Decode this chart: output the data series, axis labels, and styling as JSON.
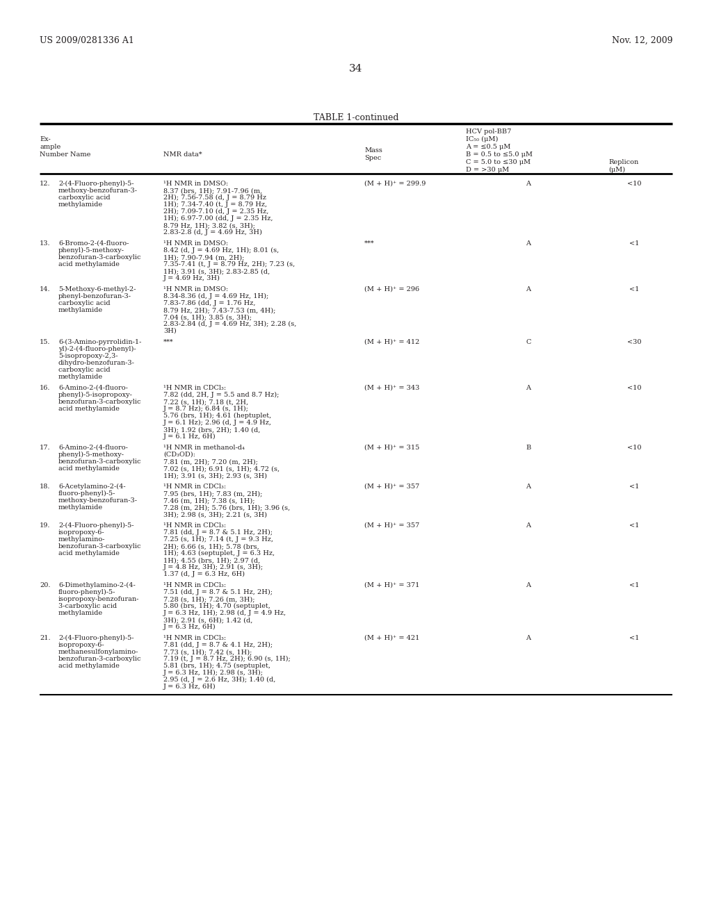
{
  "header_left": "US 2009/0281336 A1",
  "header_right": "Nov. 12, 2009",
  "page_number": "34",
  "table_title": "TABLE 1-continued",
  "bg_color": "#ffffff",
  "text_color": "#231f20",
  "font_size": 7.0,
  "rows": [
    {
      "num": "12.",
      "name": "2-(4-Fluoro-phenyl)-5-\nmethoxy-benzofuran-3-\ncarboxylic acid\nmethylamide",
      "nmr": "¹H NMR in DMSO:\n8.37 (brs, 1H); 7.91-7.96 (m,\n2H); 7.56-7.58 (d, J = 8.79 Hz\n1H); 7.34-7.40 (t, J = 8.79 Hz,\n2H); 7.09-7.10 (d, J = 2.35 Hz,\n1H); 6.97-7.00 (dd, J = 2.35 Hz,\n8.79 Hz, 1H); 3.82 (s, 3H);\n2.83-2.8 (d, J = 4.69 Hz, 3H)",
      "mass": "(M + H)⁺ = 299.9",
      "hcv": "A",
      "replicon": "<10"
    },
    {
      "num": "13.",
      "name": "6-Bromo-2-(4-fluoro-\nphenyl)-5-methoxy-\nbenzofuran-3-carboxylic\nacid methylamide",
      "nmr": "¹H NMR in DMSO:\n8.42 (d, J = 4.69 Hz, 1H); 8.01 (s,\n1H); 7.90-7.94 (m, 2H);\n7.35-7.41 (t, J = 8.79 Hz, 2H); 7.23 (s,\n1H); 3.91 (s, 3H); 2.83-2.85 (d,\nJ = 4.69 Hz, 3H)",
      "mass": "***",
      "hcv": "A",
      "replicon": "<1"
    },
    {
      "num": "14.",
      "name": "5-Methoxy-6-methyl-2-\nphenyl-benzofuran-3-\ncarboxylic acid\nmethylamide",
      "nmr": "¹H NMR in DMSO:\n8.34-8.36 (d, J = 4.69 Hz, 1H);\n7.83-7.86 (dd, J = 1.76 Hz,\n8.79 Hz, 2H); 7.43-7.53 (m, 4H);\n7.04 (s, 1H); 3.85 (s, 3H);\n2.83-2.84 (d, J = 4.69 Hz, 3H); 2.28 (s,\n3H)",
      "mass": "(M + H)⁺ = 296",
      "hcv": "A",
      "replicon": "<1"
    },
    {
      "num": "15.",
      "name": "6-(3-Amino-pyrrolidin-1-\nyl)-2-(4-fluoro-phenyl)-\n5-isopropoxy-2,3-\ndihydro-benzofuran-3-\ncarboxylic acid\nmethylamide",
      "nmr": "***",
      "mass": "(M + H)⁺ = 412",
      "hcv": "C",
      "replicon": "<30"
    },
    {
      "num": "16.",
      "name": "6-Amino-2-(4-fluoro-\nphenyl)-5-isopropoxy-\nbenzofuran-3-carboxylic\nacid methylamide",
      "nmr": "¹H NMR in CDCl₃:\n7.82 (dd, 2H, J = 5.5 and 8.7 Hz);\n7.22 (s, 1H); 7.18 (t, 2H,\nJ = 8.7 Hz); 6.84 (s, 1H);\n5.76 (brs, 1H); 4.61 (heptuplet,\nJ = 6.1 Hz); 2.96 (d, J = 4.9 Hz,\n3H); 1.92 (brs, 2H); 1.40 (d,\nJ = 6.1 Hz, 6H)",
      "mass": "(M + H)⁺ = 343",
      "hcv": "A",
      "replicon": "<10"
    },
    {
      "num": "17.",
      "name": "6-Amino-2-(4-fluoro-\nphenyl)-5-methoxy-\nbenzofuran-3-carboxylic\nacid methylamide",
      "nmr": "¹H NMR in methanol-d₄\n(CD₃OD):\n7.81 (m, 2H); 7.20 (m, 2H);\n7.02 (s, 1H); 6.91 (s, 1H); 4.72 (s,\n1H); 3.91 (s, 3H); 2.93 (s, 3H)",
      "mass": "(M + H)⁺ = 315",
      "hcv": "B",
      "replicon": "<10"
    },
    {
      "num": "18.",
      "name": "6-Acetylamino-2-(4-\nfluoro-phenyl)-5-\nmethoxy-benzofuran-3-\nmethylamide",
      "nmr": "¹H NMR in CDCl₃:\n7.95 (brs, 1H); 7.83 (m, 2H);\n7.46 (m, 1H); 7.38 (s, 1H);\n7.28 (m, 2H); 5.76 (brs, 1H); 3.96 (s,\n3H); 2.98 (s, 3H); 2.21 (s, 3H)",
      "mass": "(M + H)⁺ = 357",
      "hcv": "A",
      "replicon": "<1"
    },
    {
      "num": "19.",
      "name": "2-(4-Fluoro-phenyl)-5-\nisopropoxy-6-\nmethylamino-\nbenzofuran-3-carboxylic\nacid methylamide",
      "nmr": "¹H NMR in CDCl₃:\n7.81 (dd, J = 8.7 & 5.1 Hz, 2H);\n7.25 (s, 1H); 7.14 (t, J = 9.3 Hz,\n2H); 6.66 (s, 1H); 5.78 (brs,\n1H); 4.63 (septuplet, J = 6.3 Hz,\n1H); 4.55 (brs, 1H); 2.97 (d,\nJ = 4.8 Hz, 3H); 2.91 (s, 3H);\n1.37 (d, J = 6.3 Hz, 6H)",
      "mass": "(M + H)⁺ = 357",
      "hcv": "A",
      "replicon": "<1"
    },
    {
      "num": "20.",
      "name": "6-Dimethylamino-2-(4-\nfluoro-phenyl)-5-\nisopropoxy-benzofuran-\n3-carboxylic acid\nmethylamide",
      "nmr": "¹H NMR in CDCl₃:\n7.51 (dd, J = 8.7 & 5.1 Hz, 2H);\n7.28 (s, 1H); 7.26 (m, 3H);\n5.80 (brs, 1H); 4.70 (septuplet,\nJ = 6.3 Hz, 1H); 2.98 (d, J = 4.9 Hz,\n3H); 2.91 (s, 6H); 1.42 (d,\nJ = 6.3 Hz, 6H)",
      "mass": "(M + H)⁺ = 371",
      "hcv": "A",
      "replicon": "<1"
    },
    {
      "num": "21.",
      "name": "2-(4-Fluoro-phenyl)-5-\nisopropoxy-6-\nmethanesulfonylamino-\nbenzofuran-3-carboxylic\nacid methylamide",
      "nmr": "¹H NMR in CDCl₃:\n7.81 (dd, J = 8.7 & 4.1 Hz, 2H);\n7.73 (s, 1H); 7.42 (s, 1H);\n7.19 (t, J = 8.7 Hz, 2H); 6.90 (s, 1H);\n5.81 (brs, 1H); 4.75 (septuplet,\nJ = 6.3 Hz, 1H); 2.98 (s, 3H);\n2.95 (d, J = 2.6 Hz, 3H); 1.40 (d,\nJ = 6.3 Hz, 6H)",
      "mass": "(M + H)⁺ = 421",
      "hcv": "A",
      "replicon": "<1"
    }
  ]
}
